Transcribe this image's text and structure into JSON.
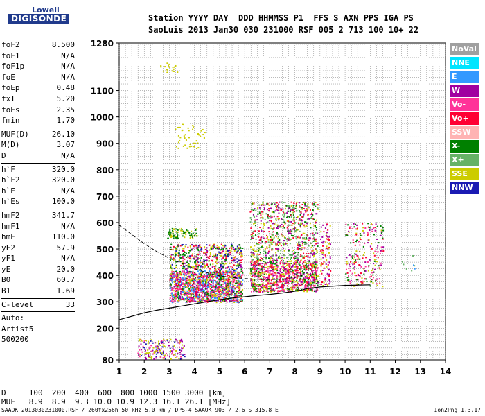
{
  "logo": {
    "line1": "Lowell",
    "line2": "DIGISONDE"
  },
  "header": {
    "line1": "Station YYYY DAY  DDD HHMMSS P1  FFS S AXN PPS IGA PS",
    "line2": "SaoLuis 2013 Jan30 030 231000 RSF 005 2 713 100 10+ 22"
  },
  "params": {
    "g1": [
      [
        "foF2",
        "8.500"
      ],
      [
        "foF1",
        "N/A"
      ],
      [
        "foF1p",
        "N/A"
      ],
      [
        "foE",
        "N/A"
      ],
      [
        "foEp",
        "0.48"
      ],
      [
        "fxI",
        "5.20"
      ],
      [
        "foEs",
        "2.35"
      ],
      [
        "fmin",
        "1.70"
      ]
    ],
    "g2": [
      [
        "MUF(D)",
        "26.10"
      ],
      [
        "M(D)",
        "3.07"
      ],
      [
        "D",
        "N/A"
      ]
    ],
    "g3": [
      [
        "h`F",
        "320.0"
      ],
      [
        "h`F2",
        "320.0"
      ],
      [
        "h`E",
        "N/A"
      ],
      [
        "h`Es",
        "100.0"
      ]
    ],
    "g4": [
      [
        "hmF2",
        "341.7"
      ],
      [
        "hmF1",
        "N/A"
      ],
      [
        "hmE",
        "110.0"
      ],
      [
        "yF2",
        "57.9"
      ],
      [
        "yF1",
        "N/A"
      ],
      [
        "yE",
        "20.0"
      ],
      [
        "B0",
        "60.7"
      ],
      [
        "B1",
        "1.69"
      ]
    ],
    "g5": [
      [
        "C-level",
        "33"
      ]
    ],
    "g6": [
      "Auto:",
      "Artist5",
      "500200"
    ]
  },
  "legend": [
    {
      "label": "NoVal",
      "color": "#a0a0a0"
    },
    {
      "label": "NNE",
      "color": "#00e5ff"
    },
    {
      "label": "E",
      "color": "#3399ff"
    },
    {
      "label": "W",
      "color": "#a000a0"
    },
    {
      "label": "Vo-",
      "color": "#ff3399"
    },
    {
      "label": "Vo+",
      "color": "#ff0033"
    },
    {
      "label": "SSW",
      "color": "#ffb3b3"
    },
    {
      "label": "X-",
      "color": "#008000"
    },
    {
      "label": "X+",
      "color": "#66b266"
    },
    {
      "label": "SSE",
      "color": "#cccc00"
    },
    {
      "label": "NNW",
      "color": "#1a1ab3"
    }
  ],
  "chart_data": {
    "type": "scatter",
    "xlim": [
      1,
      14
    ],
    "ylim": [
      80,
      1280
    ],
    "x_ticks": [
      1,
      2,
      3,
      4,
      5,
      6,
      7,
      8,
      9,
      10,
      11,
      12,
      13,
      14
    ],
    "y_ticks": [
      80,
      200,
      300,
      400,
      500,
      600,
      700,
      800,
      900,
      1000,
      1100,
      1280
    ],
    "grid": true,
    "trace_lower": [
      [
        1.0,
        232
      ],
      [
        1.5,
        245
      ],
      [
        2.0,
        258
      ],
      [
        2.5,
        268
      ],
      [
        3.0,
        276
      ],
      [
        3.5,
        284
      ],
      [
        4.0,
        292
      ],
      [
        4.5,
        300
      ],
      [
        5.0,
        308
      ],
      [
        5.5,
        314
      ],
      [
        6.0,
        319
      ],
      [
        6.5,
        324
      ],
      [
        7.0,
        328
      ],
      [
        7.5,
        333
      ],
      [
        8.0,
        340
      ],
      [
        8.3,
        345
      ],
      [
        8.5,
        350
      ],
      [
        9.0,
        356
      ],
      [
        10.0,
        362
      ],
      [
        11.0,
        364
      ]
    ],
    "trace_upper": [
      [
        1.0,
        590
      ],
      [
        1.5,
        555
      ],
      [
        2.0,
        520
      ],
      [
        2.5,
        490
      ],
      [
        3.0,
        465
      ],
      [
        3.5,
        445
      ],
      [
        4.0,
        425
      ],
      [
        4.5,
        410
      ],
      [
        5.0,
        398
      ],
      [
        5.5,
        392
      ],
      [
        6.0,
        388
      ],
      [
        6.5,
        385
      ],
      [
        7.0,
        384
      ],
      [
        7.5,
        386
      ],
      [
        8.0,
        392
      ],
      [
        8.3,
        400
      ]
    ],
    "clusters": [
      {
        "f": [
          3.0,
          5.9
        ],
        "h": [
          300,
          420
        ],
        "colors": [
          "#a000a0",
          "#ff3399",
          "#ff0033",
          "#cccc00",
          "#008000",
          "#3399ff"
        ],
        "n": 1400
      },
      {
        "f": [
          3.0,
          5.9
        ],
        "h": [
          420,
          520
        ],
        "colors": [
          "#cccc00",
          "#008000",
          "#ff0033",
          "#a000a0",
          "#1a1ab3"
        ],
        "n": 450
      },
      {
        "f": [
          6.2,
          8.9
        ],
        "h": [
          340,
          460
        ],
        "colors": [
          "#a000a0",
          "#ff3399",
          "#ff0033",
          "#cccc00",
          "#008000"
        ],
        "n": 900
      },
      {
        "f": [
          6.2,
          8.9
        ],
        "h": [
          460,
          680
        ],
        "colors": [
          "#cccc00",
          "#66b266",
          "#ff0033",
          "#a000a0",
          "#008000"
        ],
        "n": 700
      },
      {
        "f": [
          2.9,
          4.1
        ],
        "h": [
          540,
          580
        ],
        "colors": [
          "#cccc00",
          "#008000"
        ],
        "n": 80
      },
      {
        "f": [
          3.2,
          4.5
        ],
        "h": [
          880,
          980
        ],
        "colors": [
          "#cccc00"
        ],
        "n": 45
      },
      {
        "f": [
          2.6,
          3.3
        ],
        "h": [
          1170,
          1210
        ],
        "colors": [
          "#cccc00"
        ],
        "n": 18
      },
      {
        "f": [
          10.0,
          11.5
        ],
        "h": [
          360,
          600
        ],
        "colors": [
          "#a000a0",
          "#ff3399",
          "#cccc00",
          "#008000",
          "#ff0033"
        ],
        "n": 220
      },
      {
        "f": [
          1.7,
          3.6
        ],
        "h": [
          85,
          160
        ],
        "colors": [
          "#a000a0",
          "#1a1ab3",
          "#ff3399",
          "#cccc00"
        ],
        "n": 170
      },
      {
        "f": [
          9.0,
          9.4
        ],
        "h": [
          360,
          600
        ],
        "colors": [
          "#cccc00",
          "#ff0033",
          "#a000a0"
        ],
        "n": 90
      },
      {
        "f": [
          12.2,
          12.8
        ],
        "h": [
          420,
          480
        ],
        "colors": [
          "#3399ff",
          "#66b266"
        ],
        "n": 8
      }
    ]
  },
  "footer": {
    "line_d": "D     100  200  400  600  800 1000 1500 3000 [km]",
    "line_muf": "MUF   8.9  8.9  9.3 10.0 10.9 12.3 16.1 26.1 [MHz]",
    "line_info": "SAAOK_2013030231000.RSF / 260fx256h 50 kHz 5.0 km / DPS-4 SAAOK 903 / 2.6 S 315.8 E",
    "version": "Ion2Png 1.3.17"
  }
}
